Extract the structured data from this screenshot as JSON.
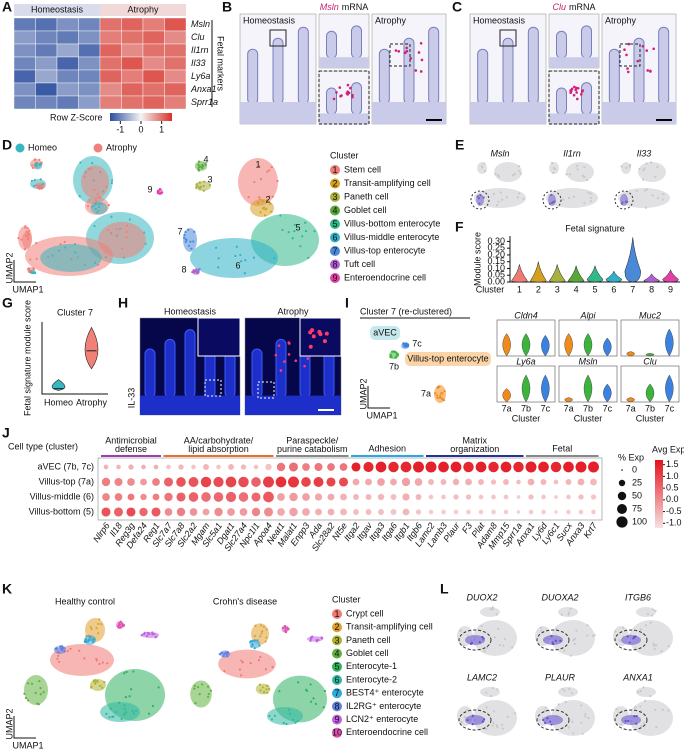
{
  "A": {
    "label": "A",
    "groups": [
      {
        "name": "Homeostasis",
        "color": "#2d3f8f"
      },
      {
        "name": "Atrophy",
        "color": "#b52a2a"
      }
    ],
    "genes": [
      "Msln",
      "Clu",
      "Il1rn",
      "Il33",
      "Ly6a",
      "Anxa1",
      "Sprr1a"
    ],
    "group_note": "Fetal markers",
    "legend_title": "Row Z-Score",
    "legend_ticks": [
      -1,
      0,
      1
    ],
    "zlim": [
      -1.5,
      1.5
    ],
    "colors": [
      "#2d4fa0",
      "#f4f4f4",
      "#d73027"
    ],
    "heatmap": {
      "type": "heatmap",
      "values": [
        [
          -1.1,
          -1.2,
          -0.9,
          -1.0,
          1.0,
          1.1,
          0.9,
          1.2
        ],
        [
          -0.8,
          -1.0,
          -1.1,
          -0.9,
          0.9,
          1.0,
          1.1,
          0.8
        ],
        [
          -0.9,
          -1.1,
          -0.7,
          -1.2,
          1.1,
          0.8,
          1.0,
          1.0
        ],
        [
          -1.0,
          -0.8,
          -1.3,
          -0.9,
          1.0,
          1.2,
          0.8,
          1.0
        ],
        [
          -1.3,
          -0.7,
          -1.0,
          -1.0,
          1.1,
          0.9,
          1.2,
          0.8
        ],
        [
          -0.9,
          -1.4,
          -0.8,
          -0.9,
          0.8,
          1.1,
          1.0,
          1.1
        ],
        [
          -1.0,
          -1.0,
          -1.1,
          -0.8,
          0.9,
          1.0,
          1.1,
          0.9
        ]
      ]
    }
  },
  "B": {
    "label": "B",
    "gene": "Msln",
    "suffix": "mRNA",
    "left": "Homeostasis",
    "right": "Atrophy"
  },
  "C": {
    "label": "C",
    "gene": "Clu",
    "suffix": "mRNA",
    "left": "Homeostasis",
    "right": "Atrophy"
  },
  "D": {
    "label": "D",
    "conditions": [
      {
        "name": "Homeo",
        "color": "#36b8c0"
      },
      {
        "name": "Atrophy",
        "color": "#f08078"
      }
    ],
    "legend_title": "Cluster",
    "y_label": "UMAP2",
    "x_label": "UMAP1",
    "clusters": [
      {
        "number": 1,
        "name": "Stem cell",
        "color": "#f07a74"
      },
      {
        "number": 2,
        "name": "Transit-amplifying cell",
        "color": "#d4a020"
      },
      {
        "number": 3,
        "name": "Paneth cell",
        "color": "#a8b040"
      },
      {
        "number": 4,
        "name": "Goblet cell",
        "color": "#58a838"
      },
      {
        "number": 5,
        "name": "Villus-bottom enterocyte",
        "color": "#30b888"
      },
      {
        "number": 6,
        "name": "Villus-middle enterocyte",
        "color": "#30b0c8"
      },
      {
        "number": 7,
        "name": "Villus-top enterocyte",
        "color": "#4a88d8"
      },
      {
        "number": 8,
        "name": "Tuft cell",
        "color": "#b060d0"
      },
      {
        "number": 9,
        "name": "Enteroendocrine cell",
        "color": "#e040a8"
      }
    ]
  },
  "E": {
    "label": "E",
    "genes": [
      "Msln",
      "Il1rn",
      "Il33"
    ]
  },
  "F": {
    "label": "F",
    "chart_data": {
      "type": "violin",
      "title": "Fetal signature",
      "y_label": "Module score",
      "x_label": "Cluster",
      "categories": [
        1,
        2,
        3,
        4,
        5,
        6,
        7,
        8,
        9
      ],
      "medians": [
        0.01,
        0.01,
        0.01,
        0.01,
        0.02,
        0.02,
        0.08,
        0.01,
        0.02
      ],
      "maxes": [
        0.13,
        0.15,
        0.13,
        0.12,
        0.12,
        0.08,
        0.33,
        0.06,
        0.09
      ],
      "ylim": [
        0,
        0.34
      ],
      "yticks": [
        {
          "value": 0,
          "label": "0.00"
        },
        0.05,
        {
          "value": 0.1,
          "label": "0.10"
        },
        0.15,
        {
          "value": 0.2,
          "label": "0.20"
        },
        0.25,
        {
          "value": 0.3,
          "label": "0.30"
        }
      ]
    }
  },
  "G": {
    "label": "G",
    "chart_data": {
      "type": "violin",
      "title": "Cluster 7",
      "y_label": "Fetal signature module score",
      "categories": [
        "Homeo",
        "Atrophy"
      ],
      "colors": [
        "#36b8c0",
        "#f08078"
      ],
      "mins": [
        0,
        0.12
      ],
      "medians": [
        0.01,
        0.22
      ],
      "maxes": [
        0.06,
        0.35
      ],
      "ylim": [
        -0.02,
        0.38
      ]
    }
  },
  "H": {
    "label": "H",
    "left": "Homeostasis",
    "right": "Atrophy",
    "stain": "IL-33"
  },
  "I": {
    "label": "I",
    "title": "Cluster 7 (re-clustered)",
    "group_labels": [
      "aVEC",
      "Villus-top enterocyte"
    ],
    "y_label": "UMAP2",
    "x_label": "UMAP1",
    "subclusters": [
      {
        "name": "7a",
        "color": "#f08a1a"
      },
      {
        "name": "7b",
        "color": "#3cb43c"
      },
      {
        "name": "7c",
        "color": "#3b82e0"
      }
    ],
    "chart_data": {
      "type": "violin",
      "x_label": "Cluster",
      "ylim": [
        0,
        4
      ],
      "genes": [
        {
          "name": "Cldn4",
          "values": [
            2.5,
            2.5,
            2.3
          ]
        },
        {
          "name": "Alpi",
          "values": [
            2.5,
            2.5,
            2.0
          ]
        },
        {
          "name": "Muc2",
          "values": [
            0.5,
            0.3,
            3.0
          ]
        },
        {
          "name": "Ly6a",
          "values": [
            1.5,
            3.0,
            3.0
          ]
        },
        {
          "name": "Msln",
          "values": [
            0.5,
            3.0,
            2.0
          ]
        },
        {
          "name": "Clu",
          "values": [
            0.5,
            2.0,
            3.0
          ]
        }
      ]
    }
  },
  "J": {
    "label": "J",
    "chart_data": {
      "type": "dot",
      "row_title": "Cell type (cluster)",
      "groups": [
        {
          "label": [
            "Antimicrobial",
            "defense"
          ],
          "color": "#9b3fb0",
          "genes": [
            "Nlrp6",
            "Il18",
            "Reg3g",
            "Defa24",
            "Reg1"
          ]
        },
        {
          "label": [
            "AA/carbohydrate/",
            "lipid absorption"
          ],
          "color": "#e8702a",
          "genes": [
            "Slc7a7",
            "Slc7a8",
            "Slc2a2",
            "Mgam",
            "Slc5a1",
            "Dgat1",
            "Slc27a4",
            "Npc1l1",
            "Apoa4"
          ]
        },
        {
          "label": [
            "Paraspeckle/",
            "purine catabolism"
          ],
          "color": "#888888",
          "genes": [
            "Neat1",
            "Malat1",
            "Enpp3",
            "Ada",
            "Slc28a2",
            "Nt5e"
          ]
        },
        {
          "label": [
            "Adhesion"
          ],
          "color": "#2aa8e0",
          "genes": [
            "Itga2",
            "Itgav",
            "Itga3",
            "Itga6",
            "Itgb1",
            "Itgb6"
          ]
        },
        {
          "label": [
            "Matrix",
            "organization"
          ],
          "color": "#23358f",
          "genes": [
            "Lamc2",
            "Lamb3",
            "Plaur",
            "F3",
            "Plat",
            "Adam8",
            "Mmp15",
            "Sprr1a"
          ]
        },
        {
          "label": [
            "Fetal"
          ],
          "color": "#888888",
          "genes": [
            "Anxa1",
            "Ly6d",
            "Ly6c1",
            "Sucx",
            "Anxa3",
            "Krt7"
          ]
        }
      ],
      "rows": [
        {
          "name": "aVEC (7b, 7c)",
          "pct": [
            10,
            10,
            15,
            10,
            10,
            10,
            15,
            10,
            20,
            10,
            20,
            15,
            10,
            25,
            50,
            60,
            40,
            45,
            40,
            40,
            60,
            80,
            90,
            85,
            90,
            95,
            95,
            90,
            90,
            85,
            90,
            85,
            90,
            85,
            95,
            90,
            85,
            90,
            95,
            95
          ],
          "avg": [
            -0.5,
            -0.6,
            -0.5,
            -0.5,
            -0.5,
            -0.8,
            -0.6,
            -0.8,
            -0.6,
            -0.8,
            -0.6,
            -0.6,
            -0.8,
            -0.8,
            0.3,
            0.4,
            0.2,
            0.3,
            0.3,
            0.3,
            1.5,
            1.4,
            1.5,
            1.4,
            1.4,
            1.5,
            1.5,
            1.5,
            1.5,
            1.4,
            1.5,
            1.4,
            1.5,
            1.4,
            1.5,
            1.5,
            1.4,
            1.5,
            1.5,
            1.5
          ]
        },
        {
          "name": "Villus-top (7a)",
          "pct": [
            50,
            45,
            40,
            30,
            40,
            60,
            70,
            75,
            85,
            80,
            90,
            85,
            70,
            95,
            90,
            95,
            70,
            75,
            60,
            60,
            30,
            30,
            40,
            30,
            50,
            40,
            20,
            20,
            25,
            30,
            20,
            15,
            20,
            10,
            30,
            20,
            10,
            20,
            30,
            30
          ],
          "avg": [
            0.2,
            0.1,
            0.0,
            -0.2,
            0.2,
            0.6,
            0.8,
            0.8,
            1.0,
            0.9,
            1.0,
            0.9,
            0.6,
            1.1,
            1.3,
            1.2,
            1.0,
            1.1,
            1.0,
            0.9,
            -0.4,
            -0.4,
            -0.3,
            -0.4,
            -0.3,
            -0.4,
            -0.6,
            -0.6,
            -0.5,
            -0.5,
            -0.6,
            -0.7,
            -0.6,
            -0.7,
            -0.5,
            -0.6,
            -0.7,
            -0.6,
            -0.5,
            -0.6
          ]
        },
        {
          "name": "Villus-middle (6)",
          "pct": [
            40,
            40,
            30,
            25,
            30,
            50,
            60,
            70,
            70,
            70,
            80,
            70,
            60,
            90,
            40,
            50,
            40,
            35,
            30,
            30,
            20,
            20,
            25,
            20,
            35,
            20,
            10,
            10,
            15,
            15,
            10,
            10,
            10,
            5,
            15,
            10,
            5,
            10,
            15,
            15
          ],
          "avg": [
            0.1,
            0.2,
            0.3,
            0.0,
            0.2,
            0.3,
            0.6,
            0.6,
            0.4,
            0.5,
            0.6,
            0.4,
            0.5,
            0.7,
            -0.3,
            -0.2,
            -0.3,
            -0.4,
            -0.4,
            -0.5,
            -0.6,
            -0.6,
            -0.6,
            -0.7,
            -0.5,
            -0.6,
            -0.8,
            -0.8,
            -0.7,
            -0.7,
            -0.8,
            -0.8,
            -0.8,
            -0.9,
            -0.7,
            -0.8,
            -0.9,
            -0.8,
            -0.7,
            -0.8
          ]
        },
        {
          "name": "Villus-bottom (5)",
          "pct": [
            60,
            60,
            60,
            50,
            60,
            40,
            50,
            40,
            30,
            50,
            40,
            40,
            50,
            60,
            40,
            50,
            40,
            30,
            30,
            30,
            20,
            20,
            20,
            20,
            30,
            15,
            10,
            10,
            10,
            10,
            10,
            10,
            10,
            5,
            10,
            10,
            5,
            10,
            10,
            10
          ],
          "avg": [
            0.8,
            0.6,
            0.9,
            0.5,
            0.7,
            0.0,
            0.2,
            -0.1,
            -0.3,
            0.0,
            -0.2,
            -0.2,
            0.1,
            0.0,
            -0.4,
            -0.3,
            -0.4,
            -0.5,
            -0.5,
            -0.6,
            -0.7,
            -0.7,
            -0.7,
            -0.8,
            -0.6,
            -0.8,
            -0.9,
            -0.9,
            -0.9,
            -0.9,
            -0.9,
            -0.9,
            -0.9,
            -1.0,
            -0.9,
            -0.9,
            -1.0,
            -0.9,
            -0.9,
            -0.9
          ]
        }
      ],
      "size_title": "% Exp",
      "size_ticks": [
        0,
        25,
        50,
        75,
        100
      ],
      "color_title": "Avg Exp",
      "clim": [
        -1.2,
        1.7
      ],
      "colors": [
        "#f6e2e2",
        "#e3121c"
      ],
      "color_ticks": [
        1.5,
        {
          "value": 1,
          "label": "1.0"
        },
        0.5,
        {
          "value": 0,
          "label": "0.0"
        },
        -0.5,
        {
          "value": -1,
          "label": "-1.0"
        }
      ]
    }
  },
  "K": {
    "label": "K",
    "conditions": [
      "Healthy control",
      "Crohn's disease"
    ],
    "legend_title": "Cluster",
    "y_label": "UMAP2",
    "x_label": "UMAP1",
    "clusters": [
      {
        "number": 1,
        "name": "Crypt cell",
        "color": "#f07a74"
      },
      {
        "number": 2,
        "name": "Transit-amplifying cell",
        "color": "#e0a030"
      },
      {
        "number": 3,
        "name": "Paneth cell",
        "color": "#b0b030"
      },
      {
        "number": 4,
        "name": "Goblet cell",
        "color": "#60b040"
      },
      {
        "number": 5,
        "name": "Enterocyte-1",
        "color": "#30b060"
      },
      {
        "number": 6,
        "name": "Enterocyte-2",
        "color": "#30b8a0"
      },
      {
        "number": 7,
        "name": "BEST4⁺ enterocyte",
        "color": "#30a8d8"
      },
      {
        "number": 8,
        "name": "IL2RG⁺ enterocyte",
        "color": "#6080e0"
      },
      {
        "number": 9,
        "name": "LCN2⁺ enterocyte",
        "color": "#c060e0"
      },
      {
        "number": 10,
        "name": "Enteroendocrine cell",
        "color": "#e050b0"
      }
    ]
  },
  "L": {
    "label": "L",
    "genes": [
      "DUOX2",
      "DUOXA2",
      "ITGB6",
      "LAMC2",
      "PLAUR",
      "ANXA1"
    ]
  }
}
